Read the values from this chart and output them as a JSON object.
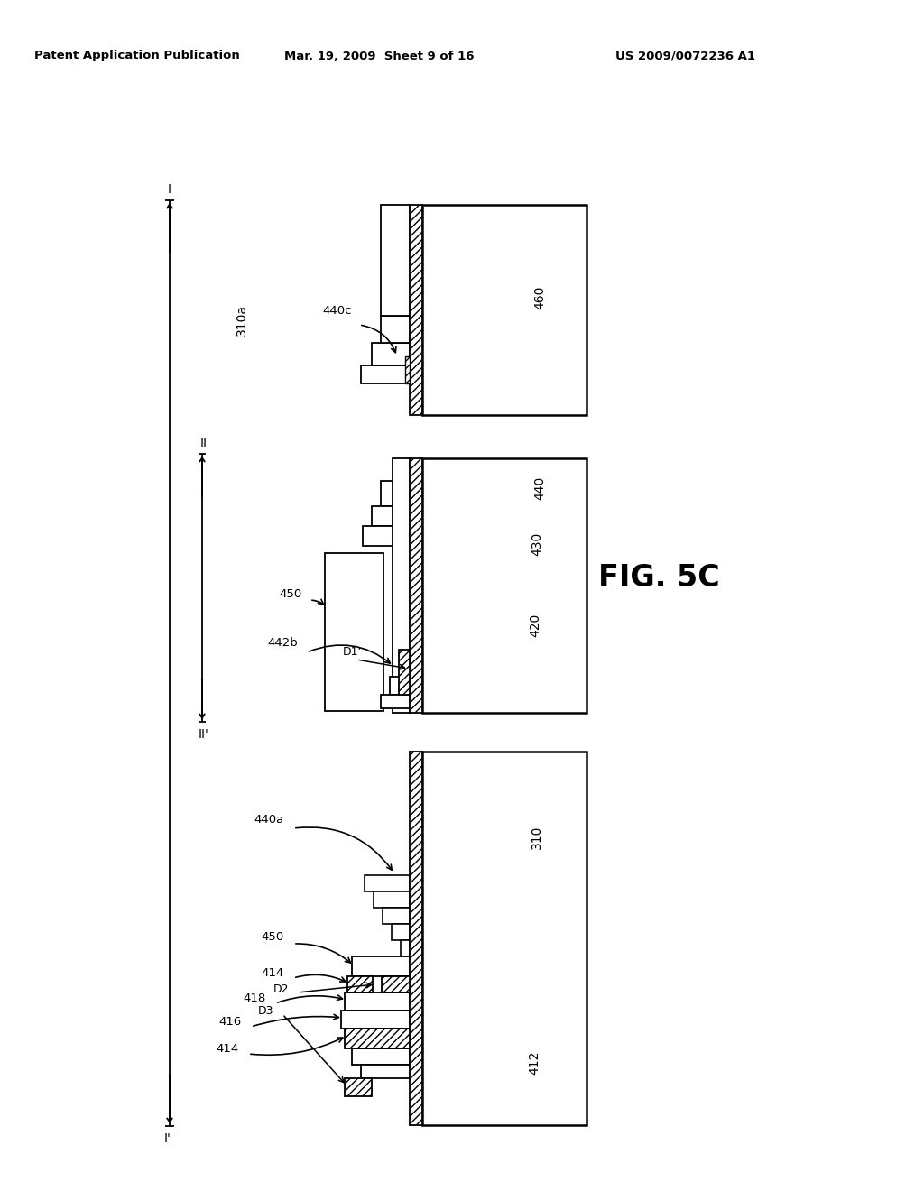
{
  "bg_color": "#ffffff",
  "header_left": "Patent Application Publication",
  "header_center": "Mar. 19, 2009  Sheet 9 of 16",
  "header_right": "US 2009/0072236 A1",
  "fig_label": "FIG. 5C"
}
